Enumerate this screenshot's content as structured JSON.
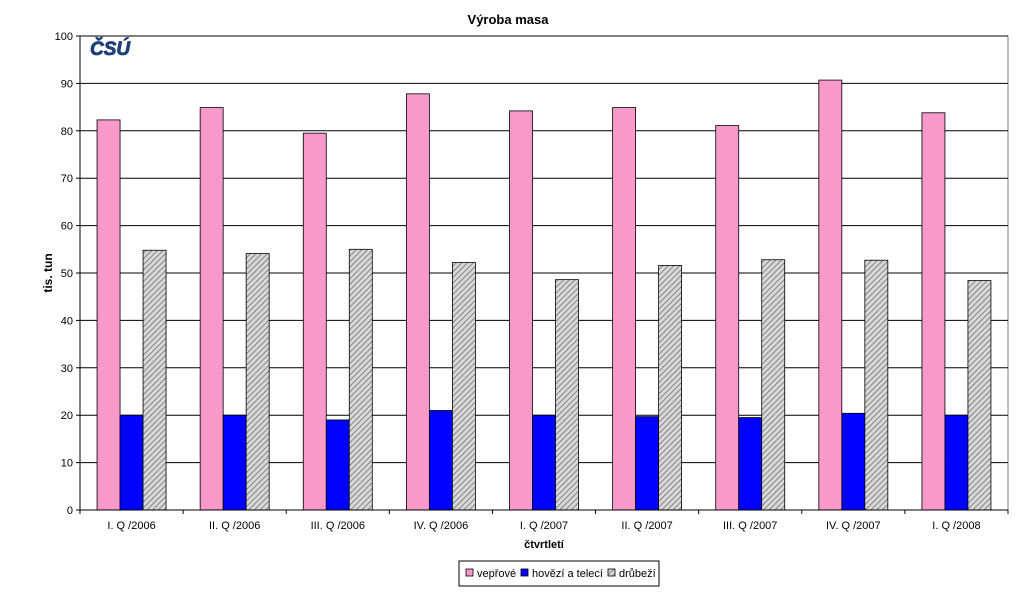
{
  "chart_data": {
    "type": "bar",
    "title": "Výroba masa",
    "xlabel": "čtvrtletí",
    "ylabel": "tis. tun",
    "ylim": [
      0,
      100
    ],
    "yticks": [
      0,
      10,
      20,
      30,
      40,
      50,
      60,
      70,
      80,
      90,
      100
    ],
    "grid": true,
    "legend_position": "bottom",
    "categories": [
      "I. Q /2006",
      "II. Q /2006",
      "III. Q /2006",
      "IV. Q /2006",
      "I. Q /2007",
      "II. Q /2007",
      "III. Q /2007",
      "IV. Q /2007",
      "I. Q /2008"
    ],
    "series": [
      {
        "name": "vepřové",
        "color": "#f799c9",
        "pattern": "solid",
        "values": [
          82.3,
          84.9,
          79.5,
          87.8,
          84.2,
          84.9,
          81.1,
          90.7,
          83.8
        ]
      },
      {
        "name": "hovězí a telecí",
        "color": "#0000ff",
        "pattern": "solid",
        "values": [
          20.0,
          20.0,
          19.0,
          21.0,
          20.0,
          19.7,
          19.5,
          20.4,
          20.0
        ]
      },
      {
        "name": "drůbeží",
        "color": "#c0c0c0",
        "pattern": "diagonal-hatch",
        "values": [
          54.8,
          54.1,
          55.0,
          52.2,
          48.6,
          51.6,
          52.8,
          52.7,
          48.4
        ]
      }
    ],
    "logo_text": "ČSÚ"
  }
}
